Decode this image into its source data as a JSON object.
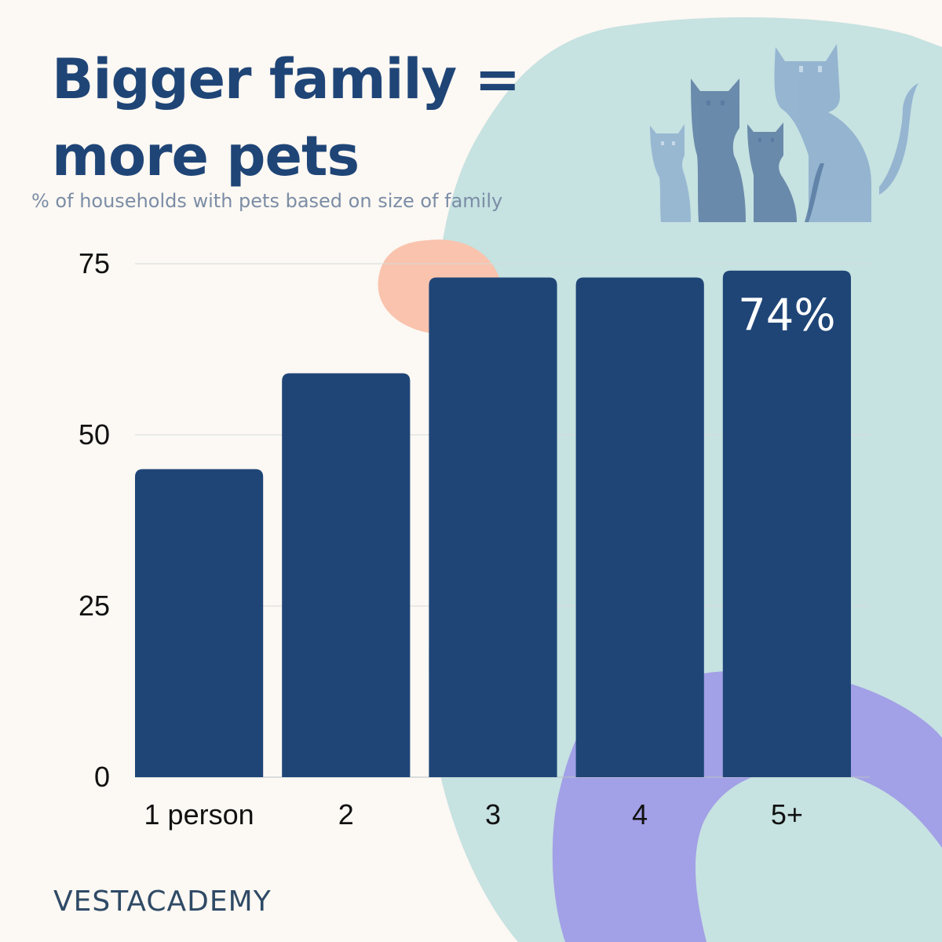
{
  "title": "Bigger family = more pets",
  "subtitle": "% of households with pets based on size of family",
  "brand": "VESTACADEMY",
  "illustration": "cats-family-icon",
  "colors": {
    "background": "#fcf8f3",
    "bar": "#1f4577",
    "blob_teal": "#c6e2e1",
    "blob_purple": "#a2a0e6",
    "blob_peach": "#f9c3ad",
    "cats": "#8fb0cf",
    "title": "#1f4577"
  },
  "chart_data": {
    "type": "bar",
    "title": "Bigger family = more pets",
    "subtitle": "% of households with pets based on size of family",
    "categories": [
      "1 person",
      "2",
      "3",
      "4",
      "5+"
    ],
    "values": [
      45,
      59,
      73,
      73,
      74
    ],
    "yticks": [
      0,
      25,
      50,
      75
    ],
    "ylim": [
      0,
      75
    ],
    "grid": true,
    "data_labels": [
      {
        "category": "5+",
        "text": "74%"
      }
    ]
  }
}
